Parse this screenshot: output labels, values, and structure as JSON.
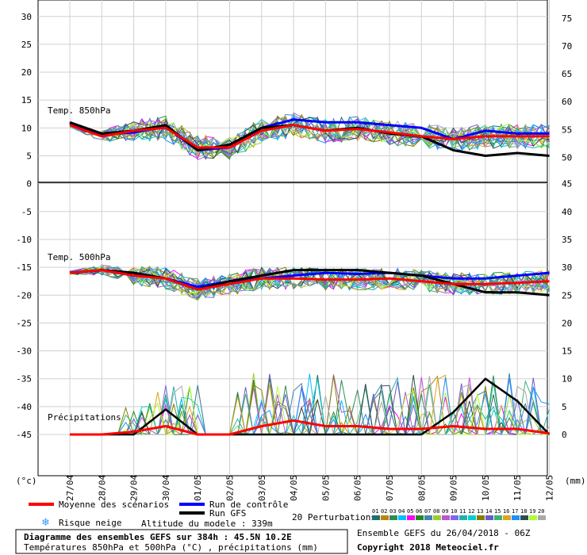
{
  "chart_data": {
    "type": "line",
    "dates": [
      "27/04",
      "28/04",
      "29/04",
      "30/04",
      "01/05",
      "02/05",
      "03/05",
      "04/05",
      "05/05",
      "06/05",
      "07/05",
      "08/05",
      "09/05",
      "10/05",
      "11/05",
      "12/05"
    ],
    "left_axis_ticks": [
      30,
      25,
      20,
      15,
      10,
      5,
      0,
      -5,
      -10,
      -15,
      -20,
      -25,
      -30,
      -35,
      -40,
      -45
    ],
    "right_axis_ticks_850": [
      75,
      70,
      65,
      60,
      55,
      50
    ],
    "right_axis_ticks_500": [
      45,
      40,
      35,
      30,
      25,
      20,
      15,
      10,
      5,
      0
    ],
    "left_unit": "(°c)",
    "right_unit": "(mm)",
    "panel_labels": {
      "t850": "Temp. 850hPa",
      "t500": "Temp. 500hPa",
      "precip": "Précipitations"
    },
    "series": {
      "t850_mean": [
        10.5,
        8.5,
        9.5,
        10,
        6.5,
        6.5,
        9.5,
        10.5,
        9.5,
        9.8,
        9.2,
        8.5,
        8,
        8.5,
        8.5,
        8.5
      ],
      "t850_control": [
        10.8,
        8.8,
        9.2,
        10.2,
        6,
        6.5,
        10,
        11.5,
        11,
        11,
        10.5,
        10,
        8,
        9.5,
        9,
        9
      ],
      "t850_gfs": [
        11,
        9,
        9.5,
        10.5,
        6,
        7,
        10,
        10.5,
        9.5,
        10,
        9,
        8.5,
        6,
        5,
        5.5,
        5
      ],
      "t500_mean": [
        -16,
        -15.5,
        -16.5,
        -17,
        -19,
        -18,
        -17,
        -17,
        -17.2,
        -17.2,
        -17,
        -17.5,
        -18,
        -18,
        -17.8,
        -17.5
      ],
      "t500_control": [
        -16,
        -15.5,
        -16,
        -17,
        -18.5,
        -17.5,
        -17,
        -16.5,
        -16,
        -16.2,
        -16,
        -16.5,
        -17,
        -17,
        -16.5,
        -16
      ],
      "t500_gfs": [
        -16,
        -15.5,
        -16,
        -17,
        -19,
        -17.5,
        -16.5,
        -15.5,
        -15.5,
        -15.5,
        -16,
        -16.5,
        -18,
        -19.5,
        -19.5,
        -20
      ],
      "precip_mean": [
        0,
        0,
        0.5,
        1.5,
        0,
        0,
        1.5,
        2.5,
        1.5,
        1.5,
        1,
        1,
        1.5,
        1,
        1,
        0.2
      ],
      "precip_gfs": [
        0,
        0,
        0,
        4.5,
        0,
        0,
        0,
        0,
        0,
        0,
        0,
        0,
        4,
        10,
        6,
        0
      ]
    },
    "legend": {
      "mean": "Moyenne des scénarios",
      "control": "Run de contrôle",
      "gfs": "Run GFS",
      "snow": "Risque neige",
      "perturbations": "20 Perturbations",
      "altitude": "Altitude du modele : 339m",
      "pert_numbers": [
        "01",
        "02",
        "03",
        "04",
        "05",
        "06",
        "07",
        "08",
        "09",
        "10",
        "11",
        "12",
        "13",
        "14",
        "15",
        "16",
        "17",
        "18",
        "19",
        "20"
      ],
      "pert_colors": [
        "#1f6f6f",
        "#b8860b",
        "#2e8b57",
        "#00bfff",
        "#ff00ff",
        "#228b22",
        "#4682b4",
        "#9acd32",
        "#ba55d3",
        "#7b68ee",
        "#20b2aa",
        "#00ced1",
        "#808000",
        "#6a5acd",
        "#3cb371",
        "#daa520",
        "#1e90ff",
        "#2f4f4f",
        "#adff2f",
        "#a9a9a9"
      ]
    },
    "colors": {
      "mean": "#ff0000",
      "control": "#0000ff",
      "gfs": "#000000"
    },
    "footer": {
      "title": "Diagramme des ensembles GEFS sur 384h : 45.5N 10.2E",
      "subtitle": "Températures 850hPa et 500hPa (°C) , précipitations (mm)",
      "run": "Ensemble GEFS du 26/04/2018 - 06Z",
      "copyright": "Copyright 2018 Meteociel.fr"
    }
  }
}
